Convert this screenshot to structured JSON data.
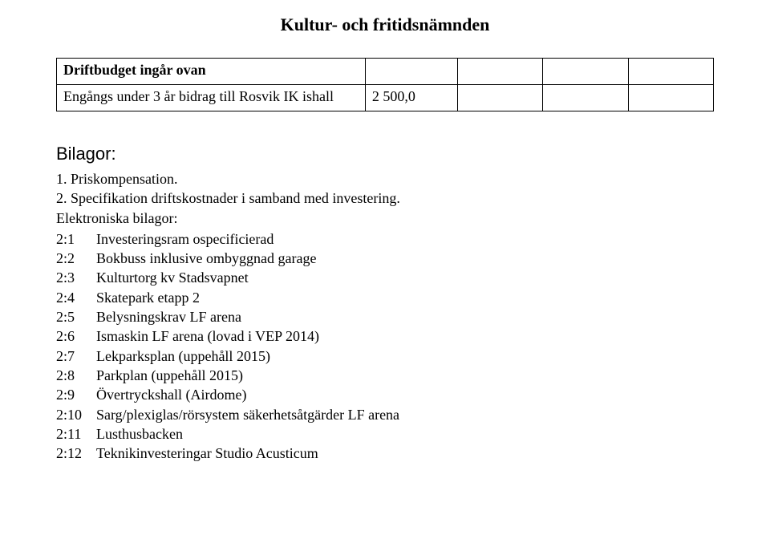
{
  "header": {
    "title": "Kultur- och fritidsnämnden"
  },
  "table": {
    "row1": {
      "text": "Driftbudget ingår ovan"
    },
    "row2": {
      "text": "Engångs under 3 år bidrag till Rosvik IK ishall",
      "value": "2 500,0"
    }
  },
  "attachments": {
    "title": "Bilagor:",
    "line1": "1. Priskompensation.",
    "line2": "2. Specifikation driftskostnader i samband med investering.",
    "electronic_label": "Elektroniska bilagor:",
    "items": [
      {
        "num": "2:1",
        "text": "Investeringsram ospecificierad"
      },
      {
        "num": "2:2",
        "text": "Bokbuss inklusive ombyggnad garage"
      },
      {
        "num": "2:3",
        "text": "Kulturtorg kv Stadsvapnet"
      },
      {
        "num": "2:4",
        "text": "Skatepark etapp 2"
      },
      {
        "num": "2:5",
        "text": "Belysningskrav LF arena"
      },
      {
        "num": "2:6",
        "text": "Ismaskin LF arena (lovad i VEP 2014)"
      },
      {
        "num": "2:7",
        "text": "Lekparksplan (uppehåll 2015)"
      },
      {
        "num": "2:8",
        "text": "Parkplan (uppehåll 2015)"
      },
      {
        "num": "2:9",
        "text": "Övertryckshall (Airdome)"
      },
      {
        "num": "2:10",
        "text": "Sarg/plexiglas/rörsystem säkerhetsåtgärder LF arena"
      },
      {
        "num": "2:11",
        "text": "Lusthusbacken"
      },
      {
        "num": "2:12",
        "text": "Teknikinvesteringar Studio Acusticum"
      }
    ]
  }
}
